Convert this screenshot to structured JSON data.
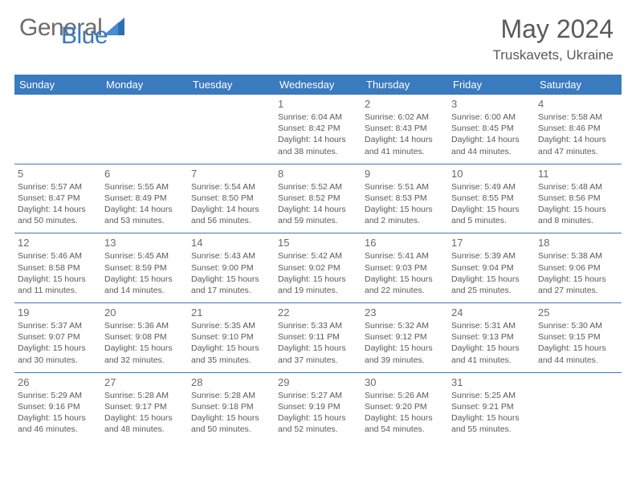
{
  "brand": {
    "part1": "General",
    "part2": "Blue"
  },
  "title": "May 2024",
  "location": "Truskavets, Ukraine",
  "colors": {
    "accent": "#3a7abf",
    "text": "#545454",
    "header_text": "#ffffff",
    "background": "#ffffff"
  },
  "days_of_week": [
    "Sunday",
    "Monday",
    "Tuesday",
    "Wednesday",
    "Thursday",
    "Friday",
    "Saturday"
  ],
  "weeks": [
    [
      {
        "n": "",
        "sr": "",
        "ss": "",
        "dl": ""
      },
      {
        "n": "",
        "sr": "",
        "ss": "",
        "dl": ""
      },
      {
        "n": "",
        "sr": "",
        "ss": "",
        "dl": ""
      },
      {
        "n": "1",
        "sr": "Sunrise: 6:04 AM",
        "ss": "Sunset: 8:42 PM",
        "dl": "Daylight: 14 hours and 38 minutes."
      },
      {
        "n": "2",
        "sr": "Sunrise: 6:02 AM",
        "ss": "Sunset: 8:43 PM",
        "dl": "Daylight: 14 hours and 41 minutes."
      },
      {
        "n": "3",
        "sr": "Sunrise: 6:00 AM",
        "ss": "Sunset: 8:45 PM",
        "dl": "Daylight: 14 hours and 44 minutes."
      },
      {
        "n": "4",
        "sr": "Sunrise: 5:58 AM",
        "ss": "Sunset: 8:46 PM",
        "dl": "Daylight: 14 hours and 47 minutes."
      }
    ],
    [
      {
        "n": "5",
        "sr": "Sunrise: 5:57 AM",
        "ss": "Sunset: 8:47 PM",
        "dl": "Daylight: 14 hours and 50 minutes."
      },
      {
        "n": "6",
        "sr": "Sunrise: 5:55 AM",
        "ss": "Sunset: 8:49 PM",
        "dl": "Daylight: 14 hours and 53 minutes."
      },
      {
        "n": "7",
        "sr": "Sunrise: 5:54 AM",
        "ss": "Sunset: 8:50 PM",
        "dl": "Daylight: 14 hours and 56 minutes."
      },
      {
        "n": "8",
        "sr": "Sunrise: 5:52 AM",
        "ss": "Sunset: 8:52 PM",
        "dl": "Daylight: 14 hours and 59 minutes."
      },
      {
        "n": "9",
        "sr": "Sunrise: 5:51 AM",
        "ss": "Sunset: 8:53 PM",
        "dl": "Daylight: 15 hours and 2 minutes."
      },
      {
        "n": "10",
        "sr": "Sunrise: 5:49 AM",
        "ss": "Sunset: 8:55 PM",
        "dl": "Daylight: 15 hours and 5 minutes."
      },
      {
        "n": "11",
        "sr": "Sunrise: 5:48 AM",
        "ss": "Sunset: 8:56 PM",
        "dl": "Daylight: 15 hours and 8 minutes."
      }
    ],
    [
      {
        "n": "12",
        "sr": "Sunrise: 5:46 AM",
        "ss": "Sunset: 8:58 PM",
        "dl": "Daylight: 15 hours and 11 minutes."
      },
      {
        "n": "13",
        "sr": "Sunrise: 5:45 AM",
        "ss": "Sunset: 8:59 PM",
        "dl": "Daylight: 15 hours and 14 minutes."
      },
      {
        "n": "14",
        "sr": "Sunrise: 5:43 AM",
        "ss": "Sunset: 9:00 PM",
        "dl": "Daylight: 15 hours and 17 minutes."
      },
      {
        "n": "15",
        "sr": "Sunrise: 5:42 AM",
        "ss": "Sunset: 9:02 PM",
        "dl": "Daylight: 15 hours and 19 minutes."
      },
      {
        "n": "16",
        "sr": "Sunrise: 5:41 AM",
        "ss": "Sunset: 9:03 PM",
        "dl": "Daylight: 15 hours and 22 minutes."
      },
      {
        "n": "17",
        "sr": "Sunrise: 5:39 AM",
        "ss": "Sunset: 9:04 PM",
        "dl": "Daylight: 15 hours and 25 minutes."
      },
      {
        "n": "18",
        "sr": "Sunrise: 5:38 AM",
        "ss": "Sunset: 9:06 PM",
        "dl": "Daylight: 15 hours and 27 minutes."
      }
    ],
    [
      {
        "n": "19",
        "sr": "Sunrise: 5:37 AM",
        "ss": "Sunset: 9:07 PM",
        "dl": "Daylight: 15 hours and 30 minutes."
      },
      {
        "n": "20",
        "sr": "Sunrise: 5:36 AM",
        "ss": "Sunset: 9:08 PM",
        "dl": "Daylight: 15 hours and 32 minutes."
      },
      {
        "n": "21",
        "sr": "Sunrise: 5:35 AM",
        "ss": "Sunset: 9:10 PM",
        "dl": "Daylight: 15 hours and 35 minutes."
      },
      {
        "n": "22",
        "sr": "Sunrise: 5:33 AM",
        "ss": "Sunset: 9:11 PM",
        "dl": "Daylight: 15 hours and 37 minutes."
      },
      {
        "n": "23",
        "sr": "Sunrise: 5:32 AM",
        "ss": "Sunset: 9:12 PM",
        "dl": "Daylight: 15 hours and 39 minutes."
      },
      {
        "n": "24",
        "sr": "Sunrise: 5:31 AM",
        "ss": "Sunset: 9:13 PM",
        "dl": "Daylight: 15 hours and 41 minutes."
      },
      {
        "n": "25",
        "sr": "Sunrise: 5:30 AM",
        "ss": "Sunset: 9:15 PM",
        "dl": "Daylight: 15 hours and 44 minutes."
      }
    ],
    [
      {
        "n": "26",
        "sr": "Sunrise: 5:29 AM",
        "ss": "Sunset: 9:16 PM",
        "dl": "Daylight: 15 hours and 46 minutes."
      },
      {
        "n": "27",
        "sr": "Sunrise: 5:28 AM",
        "ss": "Sunset: 9:17 PM",
        "dl": "Daylight: 15 hours and 48 minutes."
      },
      {
        "n": "28",
        "sr": "Sunrise: 5:28 AM",
        "ss": "Sunset: 9:18 PM",
        "dl": "Daylight: 15 hours and 50 minutes."
      },
      {
        "n": "29",
        "sr": "Sunrise: 5:27 AM",
        "ss": "Sunset: 9:19 PM",
        "dl": "Daylight: 15 hours and 52 minutes."
      },
      {
        "n": "30",
        "sr": "Sunrise: 5:26 AM",
        "ss": "Sunset: 9:20 PM",
        "dl": "Daylight: 15 hours and 54 minutes."
      },
      {
        "n": "31",
        "sr": "Sunrise: 5:25 AM",
        "ss": "Sunset: 9:21 PM",
        "dl": "Daylight: 15 hours and 55 minutes."
      },
      {
        "n": "",
        "sr": "",
        "ss": "",
        "dl": ""
      }
    ]
  ]
}
